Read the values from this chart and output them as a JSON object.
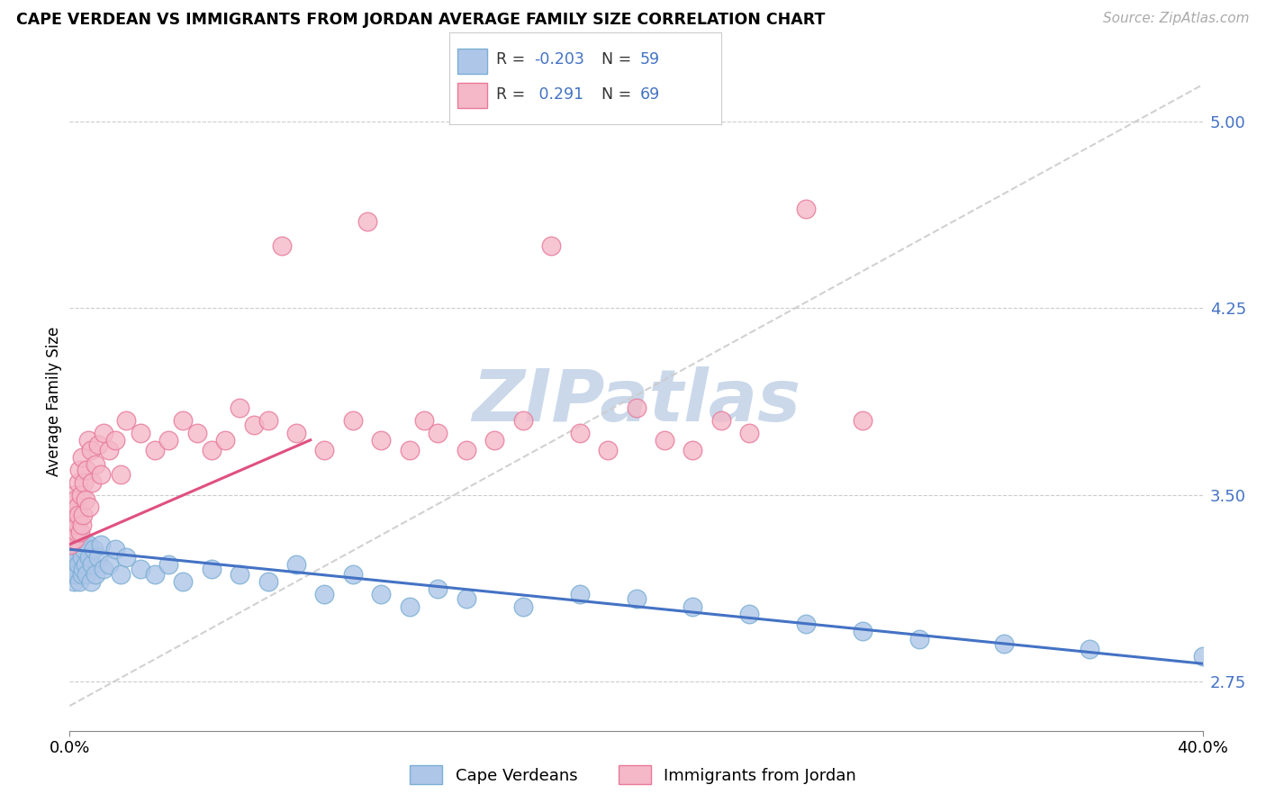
{
  "title": "CAPE VERDEAN VS IMMIGRANTS FROM JORDAN AVERAGE FAMILY SIZE CORRELATION CHART",
  "source": "Source: ZipAtlas.com",
  "ylabel": "Average Family Size",
  "y_ticks": [
    2.75,
    3.5,
    4.25,
    5.0
  ],
  "x_range": [
    0.0,
    40.0
  ],
  "y_range": [
    2.55,
    5.2
  ],
  "line_blue": "#4472c4",
  "line_pink": "#e05080",
  "blue_fill": "#aec6e8",
  "blue_edge": "#7bafd4",
  "pink_fill": "#f4b8c8",
  "pink_edge": "#e87a9a",
  "diag_color": "#cccccc",
  "watermark_color": "#cad8ea",
  "cape_verdeans_x": [
    0.05,
    0.08,
    0.1,
    0.12,
    0.15,
    0.18,
    0.2,
    0.22,
    0.25,
    0.28,
    0.3,
    0.32,
    0.35,
    0.38,
    0.4,
    0.42,
    0.45,
    0.48,
    0.5,
    0.55,
    0.6,
    0.65,
    0.7,
    0.75,
    0.8,
    0.85,
    0.9,
    1.0,
    1.1,
    1.2,
    1.4,
    1.6,
    1.8,
    2.0,
    2.5,
    3.0,
    3.5,
    4.0,
    5.0,
    6.0,
    7.0,
    8.0,
    9.0,
    10.0,
    11.0,
    12.0,
    13.0,
    14.0,
    16.0,
    18.0,
    20.0,
    22.0,
    24.0,
    26.0,
    28.0,
    30.0,
    33.0,
    36.0,
    40.0
  ],
  "cape_verdeans_y": [
    3.22,
    3.18,
    3.3,
    3.25,
    3.15,
    3.28,
    3.2,
    3.32,
    3.18,
    3.25,
    3.22,
    3.3,
    3.15,
    3.28,
    3.32,
    3.18,
    3.25,
    3.2,
    3.28,
    3.22,
    3.18,
    3.3,
    3.25,
    3.15,
    3.22,
    3.28,
    3.18,
    3.25,
    3.3,
    3.2,
    3.22,
    3.28,
    3.18,
    3.25,
    3.2,
    3.18,
    3.22,
    3.15,
    3.2,
    3.18,
    3.15,
    3.22,
    3.1,
    3.18,
    3.1,
    3.05,
    3.12,
    3.08,
    3.05,
    3.1,
    3.08,
    3.05,
    3.02,
    2.98,
    2.95,
    2.92,
    2.9,
    2.88,
    2.85
  ],
  "jordan_x": [
    0.02,
    0.04,
    0.06,
    0.08,
    0.1,
    0.12,
    0.14,
    0.16,
    0.18,
    0.2,
    0.22,
    0.24,
    0.26,
    0.28,
    0.3,
    0.32,
    0.35,
    0.38,
    0.4,
    0.42,
    0.45,
    0.48,
    0.5,
    0.55,
    0.6,
    0.65,
    0.7,
    0.75,
    0.8,
    0.9,
    1.0,
    1.1,
    1.2,
    1.4,
    1.6,
    1.8,
    2.0,
    2.5,
    3.0,
    3.5,
    4.0,
    4.5,
    5.0,
    5.5,
    6.0,
    6.5,
    7.0,
    7.5,
    8.0,
    9.0,
    10.0,
    10.5,
    11.0,
    12.0,
    12.5,
    13.0,
    14.0,
    15.0,
    16.0,
    17.0,
    18.0,
    19.0,
    20.0,
    21.0,
    22.0,
    23.0,
    24.0,
    26.0,
    28.0
  ],
  "jordan_y": [
    3.3,
    3.42,
    3.38,
    3.35,
    3.45,
    3.4,
    3.38,
    3.5,
    3.32,
    3.48,
    3.42,
    3.35,
    3.45,
    3.38,
    3.55,
    3.42,
    3.6,
    3.35,
    3.5,
    3.38,
    3.65,
    3.42,
    3.55,
    3.48,
    3.6,
    3.72,
    3.45,
    3.68,
    3.55,
    3.62,
    3.7,
    3.58,
    3.75,
    3.68,
    3.72,
    3.58,
    3.8,
    3.75,
    3.68,
    3.72,
    3.8,
    3.75,
    3.68,
    3.72,
    3.85,
    3.78,
    3.8,
    4.5,
    3.75,
    3.68,
    3.8,
    4.6,
    3.72,
    3.68,
    3.8,
    3.75,
    3.68,
    3.72,
    3.8,
    4.5,
    3.75,
    3.68,
    3.85,
    3.72,
    3.68,
    3.8,
    3.75,
    4.65,
    3.8
  ],
  "cv_trend_x": [
    0.0,
    40.0
  ],
  "cv_trend_y": [
    3.28,
    2.82
  ],
  "jo_trend_x": [
    0.0,
    8.5
  ],
  "jo_trend_y": [
    3.3,
    3.72
  ]
}
